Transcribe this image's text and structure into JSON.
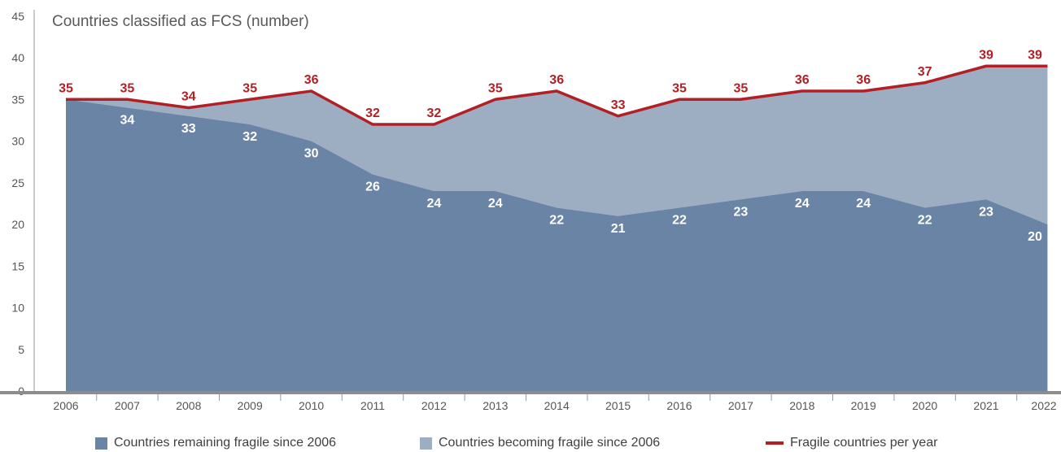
{
  "chart_data": {
    "type": "area",
    "title": "Countries classified as FCS (number)",
    "categories": [
      "2006",
      "2007",
      "2008",
      "2009",
      "2010",
      "2011",
      "2012",
      "2013",
      "2014",
      "2015",
      "2016",
      "2017",
      "2018",
      "2019",
      "2020",
      "2021",
      "2022"
    ],
    "ylim": [
      0,
      45
    ],
    "yticks": [
      0,
      5,
      10,
      15,
      20,
      25,
      30,
      35,
      40,
      45
    ],
    "grid": false,
    "legend_position": "bottom",
    "series": [
      {
        "name": "Countries remaining fragile since 2006",
        "kind": "area",
        "values": [
          35,
          34,
          33,
          32,
          30,
          26,
          24,
          24,
          22,
          21,
          22,
          23,
          24,
          24,
          22,
          23,
          20
        ],
        "color": "#6a84a6"
      },
      {
        "name": "Countries becoming fragile since 2006",
        "kind": "area",
        "values": [
          0,
          1,
          1,
          3,
          6,
          6,
          8,
          11,
          14,
          12,
          13,
          12,
          12,
          12,
          15,
          16,
          19
        ],
        "color": "#9dadc2"
      },
      {
        "name": "Fragile countries per year",
        "kind": "line",
        "values": [
          35,
          35,
          34,
          35,
          36,
          32,
          32,
          35,
          36,
          33,
          35,
          35,
          36,
          36,
          37,
          39,
          39
        ],
        "color": "#b22026"
      }
    ],
    "data_labels": {
      "remaining": [
        "",
        "34",
        "33",
        "32",
        "30",
        "26",
        "24",
        "24",
        "22",
        "21",
        "22",
        "23",
        "24",
        "24",
        "22",
        "23",
        "20"
      ],
      "total": [
        "35",
        "35",
        "34",
        "35",
        "36",
        "32",
        "32",
        "35",
        "36",
        "33",
        "35",
        "35",
        "36",
        "36",
        "37",
        "39",
        "39"
      ]
    }
  }
}
